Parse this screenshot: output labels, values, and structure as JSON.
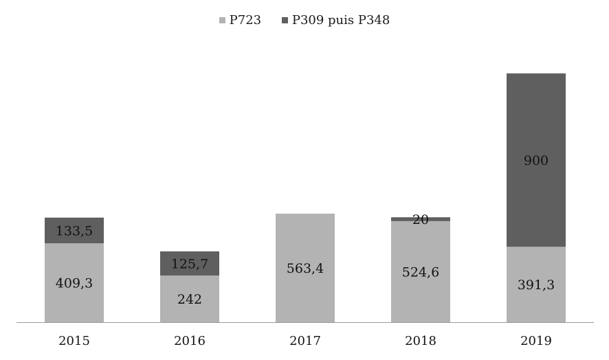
{
  "chart_data": {
    "type": "bar",
    "stacked": true,
    "categories": [
      "2015",
      "2016",
      "2017",
      "2018",
      "2019"
    ],
    "series": [
      {
        "name": "P723",
        "values": [
          409.3,
          242,
          563.4,
          524.6,
          391.3
        ],
        "labels": [
          "409,3",
          "242",
          "563,4",
          "524,6",
          "391,3"
        ],
        "color": "#b3b3b3"
      },
      {
        "name": "P309 puis P348",
        "values": [
          133.5,
          125.7,
          0,
          20,
          900
        ],
        "labels": [
          "133,5",
          "125,7",
          "",
          "20",
          "900"
        ],
        "color": "#5f5f5f"
      }
    ],
    "legend_position": "top",
    "grid": false,
    "ylim": [
      0,
      1300
    ]
  }
}
